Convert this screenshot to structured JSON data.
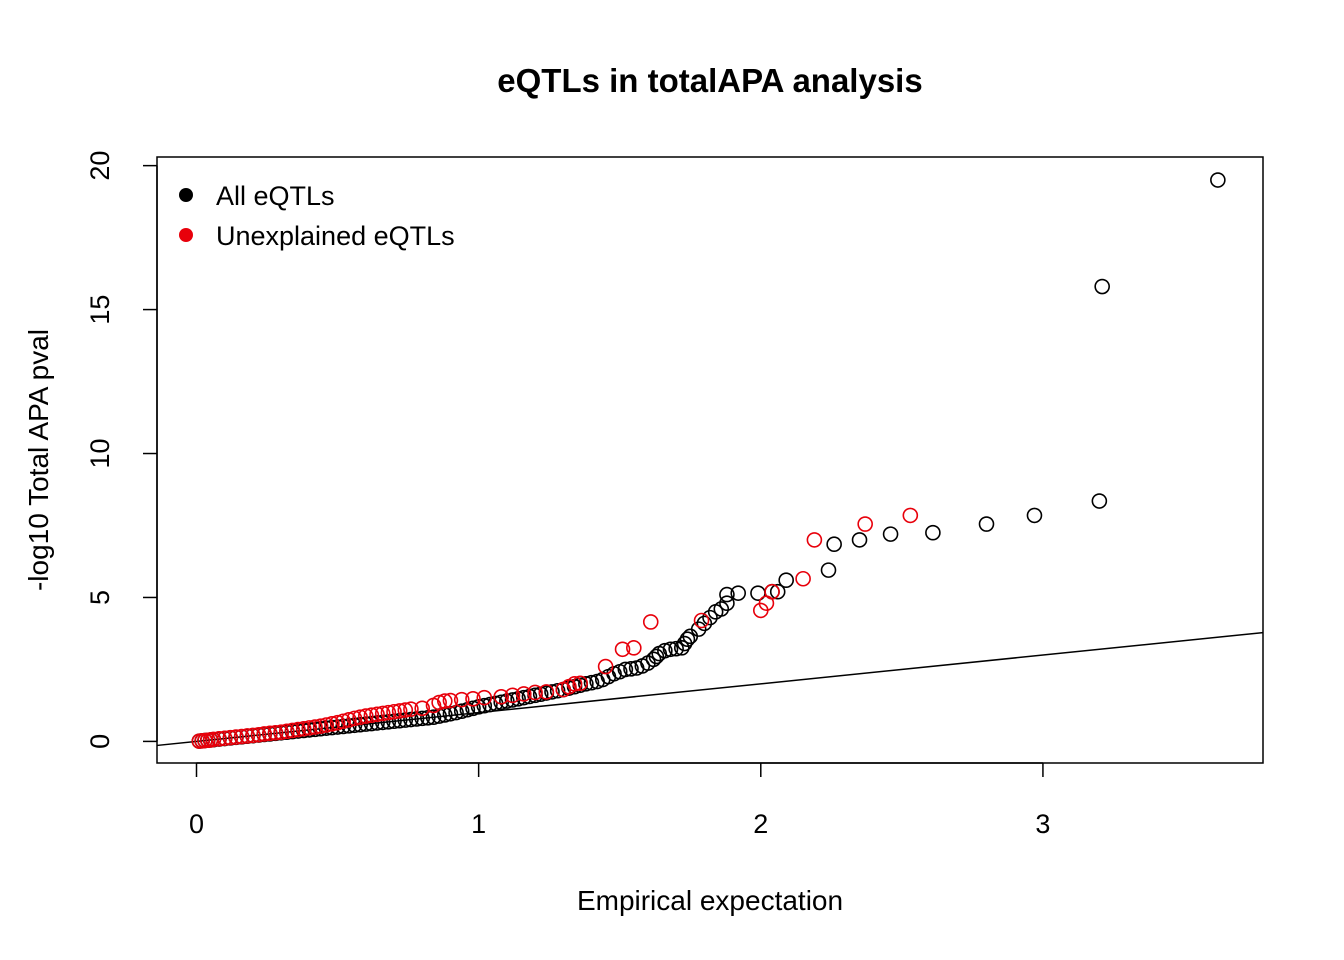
{
  "chart_data": {
    "type": "scatter",
    "title": "eQTLs in totalAPA analysis",
    "xlabel": "Empirical expectation",
    "ylabel": "-log10 Total APA pval",
    "xlim": [
      -0.14,
      3.78
    ],
    "ylim": [
      -0.75,
      20.3
    ],
    "xticks": [
      0,
      1,
      2,
      3
    ],
    "yticks": [
      0,
      5,
      10,
      15,
      20
    ],
    "grid": false,
    "legend_position": "top-left",
    "reference_line": {
      "slope": 1,
      "intercept": 0,
      "label": ""
    },
    "series": [
      {
        "name": "All eQTLs",
        "color": "#000000",
        "points": [
          [
            0.01,
            0.01
          ],
          [
            0.02,
            0.02
          ],
          [
            0.03,
            0.03
          ],
          [
            0.04,
            0.04
          ],
          [
            0.05,
            0.05
          ],
          [
            0.06,
            0.06
          ],
          [
            0.08,
            0.08
          ],
          [
            0.1,
            0.1
          ],
          [
            0.12,
            0.12
          ],
          [
            0.14,
            0.14
          ],
          [
            0.16,
            0.16
          ],
          [
            0.18,
            0.18
          ],
          [
            0.2,
            0.2
          ],
          [
            0.22,
            0.22
          ],
          [
            0.24,
            0.24
          ],
          [
            0.26,
            0.26
          ],
          [
            0.28,
            0.28
          ],
          [
            0.3,
            0.3
          ],
          [
            0.32,
            0.32
          ],
          [
            0.34,
            0.34
          ],
          [
            0.36,
            0.36
          ],
          [
            0.38,
            0.38
          ],
          [
            0.4,
            0.4
          ],
          [
            0.42,
            0.42
          ],
          [
            0.44,
            0.44
          ],
          [
            0.46,
            0.46
          ],
          [
            0.48,
            0.48
          ],
          [
            0.5,
            0.5
          ],
          [
            0.52,
            0.52
          ],
          [
            0.54,
            0.54
          ],
          [
            0.56,
            0.56
          ],
          [
            0.58,
            0.58
          ],
          [
            0.6,
            0.6
          ],
          [
            0.62,
            0.62
          ],
          [
            0.64,
            0.64
          ],
          [
            0.66,
            0.66
          ],
          [
            0.68,
            0.68
          ],
          [
            0.7,
            0.7
          ],
          [
            0.72,
            0.72
          ],
          [
            0.74,
            0.74
          ],
          [
            0.76,
            0.76
          ],
          [
            0.78,
            0.78
          ],
          [
            0.8,
            0.8
          ],
          [
            0.82,
            0.82
          ],
          [
            0.84,
            0.84
          ],
          [
            0.86,
            0.88
          ],
          [
            0.88,
            0.92
          ],
          [
            0.9,
            0.96
          ],
          [
            0.92,
            1.0
          ],
          [
            0.94,
            1.05
          ],
          [
            0.96,
            1.1
          ],
          [
            0.98,
            1.15
          ],
          [
            1.0,
            1.2
          ],
          [
            1.02,
            1.24
          ],
          [
            1.04,
            1.28
          ],
          [
            1.06,
            1.32
          ],
          [
            1.08,
            1.36
          ],
          [
            1.1,
            1.4
          ],
          [
            1.12,
            1.44
          ],
          [
            1.14,
            1.48
          ],
          [
            1.16,
            1.52
          ],
          [
            1.18,
            1.56
          ],
          [
            1.2,
            1.6
          ],
          [
            1.22,
            1.64
          ],
          [
            1.24,
            1.68
          ],
          [
            1.26,
            1.72
          ],
          [
            1.28,
            1.76
          ],
          [
            1.3,
            1.8
          ],
          [
            1.32,
            1.85
          ],
          [
            1.34,
            1.9
          ],
          [
            1.36,
            1.95
          ],
          [
            1.38,
            2.0
          ],
          [
            1.4,
            2.04
          ],
          [
            1.42,
            2.08
          ],
          [
            1.44,
            2.15
          ],
          [
            1.46,
            2.25
          ],
          [
            1.48,
            2.35
          ],
          [
            1.5,
            2.42
          ],
          [
            1.52,
            2.5
          ],
          [
            1.54,
            2.52
          ],
          [
            1.56,
            2.55
          ],
          [
            1.58,
            2.62
          ],
          [
            1.6,
            2.72
          ],
          [
            1.62,
            2.85
          ],
          [
            1.63,
            2.95
          ],
          [
            1.64,
            3.05
          ],
          [
            1.66,
            3.15
          ],
          [
            1.68,
            3.2
          ],
          [
            1.7,
            3.22
          ],
          [
            1.72,
            3.25
          ],
          [
            1.73,
            3.4
          ],
          [
            1.74,
            3.55
          ],
          [
            1.75,
            3.65
          ],
          [
            1.78,
            3.9
          ],
          [
            1.8,
            4.1
          ],
          [
            1.82,
            4.3
          ],
          [
            1.84,
            4.5
          ],
          [
            1.86,
            4.6
          ],
          [
            1.88,
            4.8
          ],
          [
            1.88,
            5.1
          ],
          [
            1.92,
            5.15
          ],
          [
            1.99,
            5.15
          ],
          [
            2.04,
            5.2
          ],
          [
            2.06,
            5.2
          ],
          [
            2.09,
            5.6
          ],
          [
            2.24,
            5.95
          ],
          [
            2.26,
            6.85
          ],
          [
            2.35,
            7.0
          ],
          [
            2.46,
            7.2
          ],
          [
            2.61,
            7.25
          ],
          [
            2.8,
            7.55
          ],
          [
            2.97,
            7.85
          ],
          [
            3.2,
            8.35
          ],
          [
            3.21,
            15.8
          ],
          [
            3.62,
            19.5
          ]
        ]
      },
      {
        "name": "Unexplained eQTLs",
        "color": "#E8000B",
        "points": [
          [
            0.01,
            0.01
          ],
          [
            0.02,
            0.02
          ],
          [
            0.03,
            0.03
          ],
          [
            0.04,
            0.04
          ],
          [
            0.05,
            0.05
          ],
          [
            0.06,
            0.07
          ],
          [
            0.08,
            0.09
          ],
          [
            0.1,
            0.11
          ],
          [
            0.12,
            0.13
          ],
          [
            0.14,
            0.15
          ],
          [
            0.16,
            0.17
          ],
          [
            0.18,
            0.19
          ],
          [
            0.2,
            0.21
          ],
          [
            0.22,
            0.23
          ],
          [
            0.24,
            0.26
          ],
          [
            0.26,
            0.28
          ],
          [
            0.28,
            0.3
          ],
          [
            0.3,
            0.32
          ],
          [
            0.32,
            0.35
          ],
          [
            0.34,
            0.38
          ],
          [
            0.36,
            0.41
          ],
          [
            0.38,
            0.44
          ],
          [
            0.4,
            0.47
          ],
          [
            0.42,
            0.5
          ],
          [
            0.44,
            0.53
          ],
          [
            0.46,
            0.57
          ],
          [
            0.48,
            0.61
          ],
          [
            0.5,
            0.65
          ],
          [
            0.52,
            0.7
          ],
          [
            0.54,
            0.75
          ],
          [
            0.56,
            0.8
          ],
          [
            0.58,
            0.84
          ],
          [
            0.6,
            0.88
          ],
          [
            0.62,
            0.91
          ],
          [
            0.64,
            0.94
          ],
          [
            0.66,
            0.97
          ],
          [
            0.68,
            1.0
          ],
          [
            0.7,
            1.03
          ],
          [
            0.72,
            1.06
          ],
          [
            0.74,
            1.09
          ],
          [
            0.76,
            1.12
          ],
          [
            0.8,
            1.15
          ],
          [
            0.84,
            1.25
          ],
          [
            0.86,
            1.35
          ],
          [
            0.88,
            1.4
          ],
          [
            0.9,
            1.42
          ],
          [
            0.94,
            1.45
          ],
          [
            0.98,
            1.48
          ],
          [
            1.02,
            1.52
          ],
          [
            1.08,
            1.55
          ],
          [
            1.12,
            1.6
          ],
          [
            1.16,
            1.65
          ],
          [
            1.2,
            1.7
          ],
          [
            1.24,
            1.72
          ],
          [
            1.3,
            1.8
          ],
          [
            1.32,
            1.9
          ],
          [
            1.34,
            2.0
          ],
          [
            1.36,
            2.02
          ],
          [
            1.45,
            2.6
          ],
          [
            1.51,
            3.2
          ],
          [
            1.55,
            3.25
          ],
          [
            1.61,
            4.15
          ],
          [
            1.79,
            4.2
          ],
          [
            2.0,
            4.55
          ],
          [
            2.02,
            4.8
          ],
          [
            2.04,
            5.2
          ],
          [
            2.15,
            5.65
          ],
          [
            2.19,
            7.0
          ],
          [
            2.37,
            7.55
          ],
          [
            2.53,
            7.85
          ]
        ]
      }
    ]
  }
}
